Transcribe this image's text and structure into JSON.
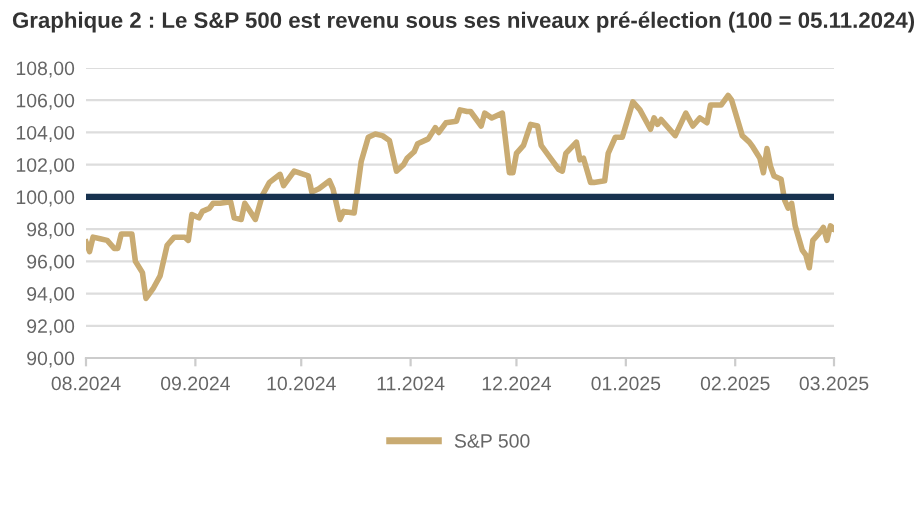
{
  "chart_data": {
    "type": "line",
    "title": "Graphique 2 : Le S&P 500 est revenu sous ses niveaux pré-élection (100 = 05.11.2024)",
    "x": [
      "2024-08-01",
      "2024-08-02",
      "2024-08-03",
      "2024-08-05",
      "2024-08-07",
      "2024-08-09",
      "2024-08-10",
      "2024-08-11",
      "2024-08-14",
      "2024-08-15",
      "2024-08-17",
      "2024-08-18",
      "2024-08-20",
      "2024-08-22",
      "2024-08-24",
      "2024-08-26",
      "2024-08-29",
      "2024-08-30",
      "2024-08-31",
      "2024-09-02",
      "2024-09-03",
      "2024-09-05",
      "2024-09-06",
      "2024-09-08",
      "2024-09-11",
      "2024-09-12",
      "2024-09-14",
      "2024-09-15",
      "2024-09-18",
      "2024-09-20",
      "2024-09-22",
      "2024-09-25",
      "2024-09-26",
      "2024-09-29",
      "2024-10-03",
      "2024-10-04",
      "2024-10-06",
      "2024-10-09",
      "2024-10-10",
      "2024-10-12",
      "2024-10-13",
      "2024-10-16",
      "2024-10-18",
      "2024-10-20",
      "2024-10-22",
      "2024-10-24",
      "2024-10-26",
      "2024-10-28",
      "2024-10-30",
      "2024-10-31",
      "2024-11-02",
      "2024-11-03",
      "2024-11-06",
      "2024-11-08",
      "2024-11-09",
      "2024-11-11",
      "2024-11-14",
      "2024-11-15",
      "2024-11-17",
      "2024-11-18",
      "2024-11-21",
      "2024-11-22",
      "2024-11-24",
      "2024-11-27",
      "2024-11-29",
      "2024-11-30",
      "2024-12-01",
      "2024-12-03",
      "2024-12-05",
      "2024-12-07",
      "2024-12-08",
      "2024-12-11",
      "2024-12-13",
      "2024-12-14",
      "2024-12-15",
      "2024-12-18",
      "2024-12-19",
      "2024-12-20",
      "2024-12-22",
      "2024-12-23",
      "2024-12-26",
      "2024-12-27",
      "2024-12-29",
      "2024-12-31",
      "2025-01-03",
      "2025-01-05",
      "2025-01-08",
      "2025-01-09",
      "2025-01-10",
      "2025-01-11",
      "2025-01-15",
      "2025-01-18",
      "2025-01-20",
      "2025-01-22",
      "2025-01-24",
      "2025-01-25",
      "2025-01-28",
      "2025-01-30",
      "2025-01-31",
      "2025-02-03",
      "2025-02-05",
      "2025-02-06",
      "2025-02-08",
      "2025-02-09",
      "2025-02-10",
      "2025-02-11",
      "2025-02-12",
      "2025-02-14",
      "2025-02-15",
      "2025-02-16",
      "2025-02-17",
      "2025-02-18",
      "2025-02-20",
      "2025-02-21",
      "2025-02-22",
      "2025-02-23",
      "2025-02-25",
      "2025-02-26",
      "2025-02-27",
      "2025-02-28",
      "2025-03-01"
    ],
    "series": [
      {
        "name": "S&P 500",
        "color": "#c9ab72",
        "values": [
          97.2,
          96.6,
          97.5,
          97.4,
          97.3,
          96.8,
          96.8,
          97.7,
          97.7,
          96.0,
          95.3,
          93.7,
          94.3,
          95.1,
          97.0,
          97.5,
          97.5,
          97.3,
          98.9,
          98.7,
          99.1,
          99.3,
          99.6,
          99.6,
          99.7,
          98.7,
          98.6,
          99.6,
          98.6,
          100.1,
          100.9,
          101.4,
          100.7,
          101.6,
          101.3,
          100.3,
          100.5,
          101.0,
          100.5,
          98.6,
          99.1,
          99.0,
          102.2,
          103.7,
          103.9,
          103.8,
          103.5,
          101.6,
          102.0,
          102.4,
          102.8,
          103.3,
          103.6,
          104.3,
          104.0,
          104.6,
          104.7,
          105.4,
          105.3,
          105.3,
          104.4,
          105.2,
          104.9,
          105.2,
          101.5,
          101.5,
          102.7,
          103.2,
          104.5,
          104.4,
          103.2,
          102.3,
          101.7,
          101.6,
          102.7,
          103.4,
          102.3,
          102.4,
          100.9,
          100.9,
          101.0,
          102.7,
          103.7,
          103.7,
          105.9,
          105.4,
          104.2,
          104.9,
          104.5,
          104.8,
          103.8,
          105.2,
          104.4,
          104.9,
          104.6,
          105.7,
          105.7,
          106.3,
          106.0,
          103.8,
          103.4,
          103.1,
          102.4,
          101.5,
          103.0,
          101.9,
          101.3,
          101.1,
          99.8,
          99.3,
          99.6,
          98.2,
          96.7,
          96.4,
          95.6,
          97.3,
          97.8,
          98.1,
          97.3,
          98.2,
          98.0
        ]
      }
    ],
    "xlim": [
      "2024-08-01",
      "2025-03-01"
    ],
    "xticks": [
      {
        "value": "2024-08-01",
        "label": "08.2024"
      },
      {
        "value": "2024-09-01",
        "label": "09.2024"
      },
      {
        "value": "2024-10-01",
        "label": "10.2024"
      },
      {
        "value": "2024-11-01",
        "label": "11.2024"
      },
      {
        "value": "2024-12-01",
        "label": "12.2024"
      },
      {
        "value": "2025-01-01",
        "label": "01.2025"
      },
      {
        "value": "2025-02-01",
        "label": "02.2025"
      },
      {
        "value": "2025-03-01",
        "label": "03.2025"
      }
    ],
    "ylim": [
      90,
      108
    ],
    "yticks": [
      {
        "value": 90,
        "label": "90,00"
      },
      {
        "value": 92,
        "label": "92,00"
      },
      {
        "value": 94,
        "label": "94,00"
      },
      {
        "value": 96,
        "label": "96,00"
      },
      {
        "value": 98,
        "label": "98,00"
      },
      {
        "value": 100,
        "label": "100,00"
      },
      {
        "value": 102,
        "label": "102,00"
      },
      {
        "value": 104,
        "label": "104,00"
      },
      {
        "value": 106,
        "label": "106,00"
      },
      {
        "value": 108,
        "label": "108,00"
      }
    ],
    "ref_lines": [
      {
        "axis": "y",
        "value": 100,
        "color": "#17324f"
      }
    ],
    "grid": "y",
    "legend": "bottom",
    "marker": "none",
    "line_style": "solid"
  }
}
